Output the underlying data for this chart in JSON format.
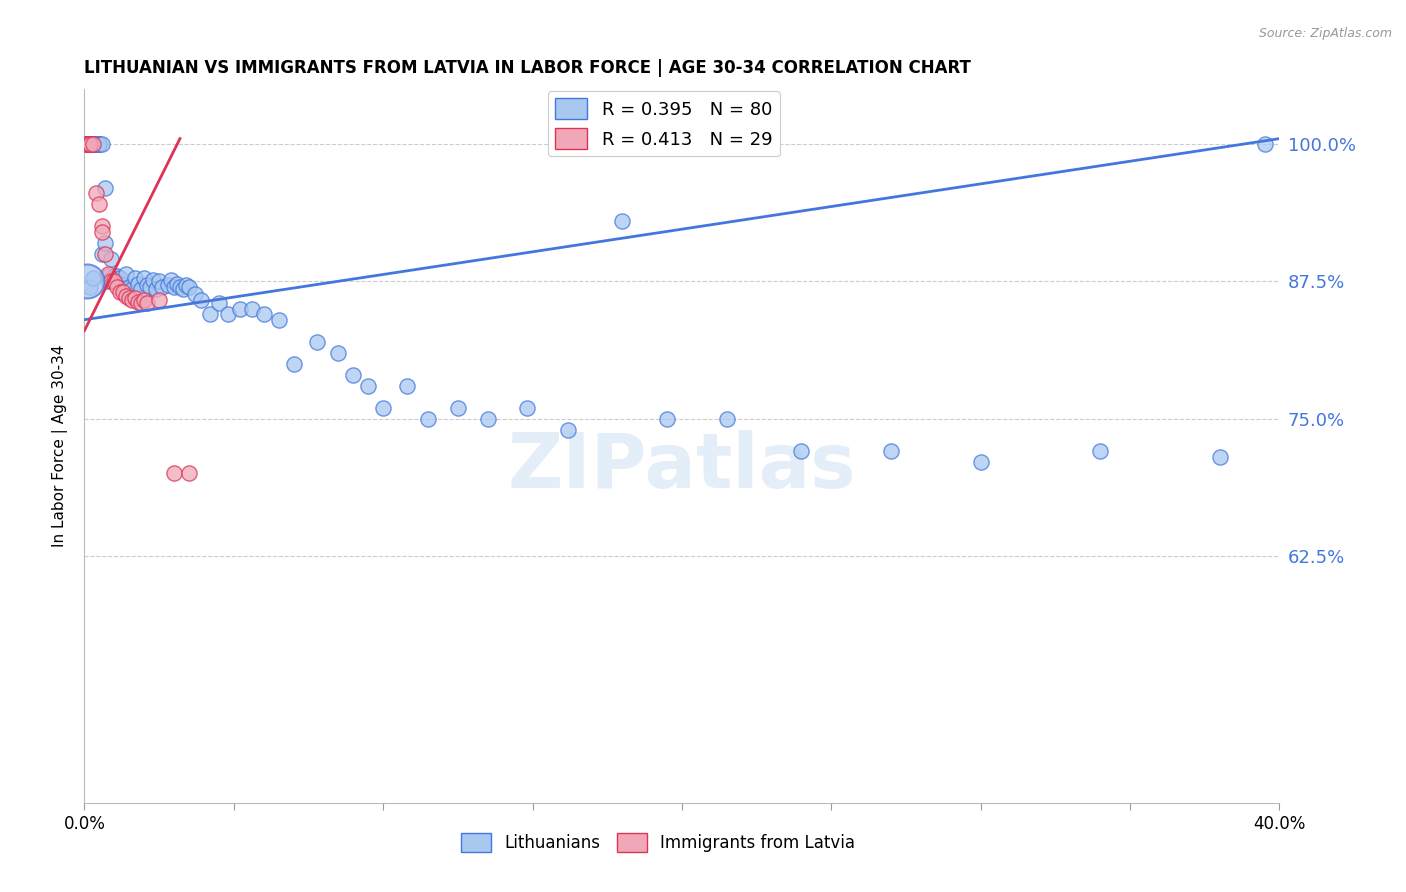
{
  "title": "LITHUANIAN VS IMMIGRANTS FROM LATVIA IN LABOR FORCE | AGE 30-34 CORRELATION CHART",
  "source": "Source: ZipAtlas.com",
  "ylabel": "In Labor Force | Age 30-34",
  "xlim": [
    0.0,
    0.4
  ],
  "ylim": [
    0.4,
    1.05
  ],
  "yticks": [
    0.625,
    0.75,
    0.875,
    1.0
  ],
  "ytick_labels": [
    "62.5%",
    "75.0%",
    "87.5%",
    "100.0%"
  ],
  "xticks": [
    0.0,
    0.05,
    0.1,
    0.15,
    0.2,
    0.25,
    0.3,
    0.35,
    0.4
  ],
  "xtick_labels": [
    "0.0%",
    "",
    "",
    "",
    "",
    "",
    "",
    "",
    "40.0%"
  ],
  "blue_color": "#a8c8f0",
  "pink_color": "#f0a8b8",
  "line_blue": "#4477dd",
  "line_pink": "#dd3355",
  "R_blue": 0.395,
  "N_blue": 80,
  "R_pink": 0.413,
  "N_pink": 29,
  "legend_label_blue": "Lithuanians",
  "legend_label_pink": "Immigrants from Latvia",
  "watermark": "ZIPatlas",
  "blue_line_x": [
    0.0,
    0.4
  ],
  "blue_line_y": [
    0.84,
    1.005
  ],
  "pink_line_x": [
    0.0,
    0.032
  ],
  "pink_line_y": [
    0.83,
    1.005
  ],
  "blue_x": [
    0.001,
    0.001,
    0.001,
    0.002,
    0.002,
    0.002,
    0.003,
    0.003,
    0.003,
    0.004,
    0.004,
    0.004,
    0.005,
    0.005,
    0.005,
    0.006,
    0.006,
    0.007,
    0.007,
    0.008,
    0.008,
    0.009,
    0.01,
    0.01,
    0.011,
    0.012,
    0.013,
    0.014,
    0.015,
    0.016,
    0.017,
    0.018,
    0.019,
    0.02,
    0.021,
    0.022,
    0.023,
    0.024,
    0.025,
    0.026,
    0.028,
    0.029,
    0.03,
    0.031,
    0.032,
    0.033,
    0.034,
    0.035,
    0.037,
    0.039,
    0.042,
    0.045,
    0.048,
    0.052,
    0.056,
    0.06,
    0.065,
    0.07,
    0.078,
    0.085,
    0.09,
    0.095,
    0.1,
    0.108,
    0.115,
    0.125,
    0.135,
    0.148,
    0.162,
    0.18,
    0.195,
    0.215,
    0.24,
    0.27,
    0.3,
    0.34,
    0.38,
    0.395,
    0.002,
    0.003
  ],
  "blue_y": [
    1.0,
    1.0,
    1.0,
    1.0,
    1.0,
    1.0,
    1.0,
    1.0,
    1.0,
    1.0,
    1.0,
    1.0,
    1.0,
    1.0,
    1.0,
    1.0,
    0.9,
    0.96,
    0.91,
    0.875,
    0.88,
    0.895,
    0.88,
    0.875,
    0.88,
    0.878,
    0.872,
    0.882,
    0.87,
    0.868,
    0.878,
    0.873,
    0.868,
    0.878,
    0.872,
    0.87,
    0.876,
    0.868,
    0.875,
    0.87,
    0.872,
    0.876,
    0.87,
    0.873,
    0.87,
    0.868,
    0.872,
    0.87,
    0.863,
    0.858,
    0.845,
    0.855,
    0.845,
    0.85,
    0.85,
    0.845,
    0.84,
    0.8,
    0.82,
    0.81,
    0.79,
    0.78,
    0.76,
    0.78,
    0.75,
    0.76,
    0.75,
    0.76,
    0.74,
    0.93,
    0.75,
    0.75,
    0.72,
    0.72,
    0.71,
    0.72,
    0.715,
    1.0,
    0.87,
    0.878
  ],
  "blue_large_x": [
    0.001
  ],
  "blue_large_y": [
    0.875
  ],
  "blue_large_s": [
    600
  ],
  "pink_x": [
    0.001,
    0.001,
    0.001,
    0.001,
    0.002,
    0.002,
    0.003,
    0.004,
    0.005,
    0.006,
    0.006,
    0.007,
    0.008,
    0.009,
    0.01,
    0.011,
    0.012,
    0.013,
    0.014,
    0.015,
    0.016,
    0.017,
    0.018,
    0.019,
    0.02,
    0.021,
    0.025,
    0.03,
    0.035
  ],
  "pink_y": [
    1.0,
    1.0,
    1.0,
    1.0,
    1.0,
    1.0,
    1.0,
    0.955,
    0.945,
    0.925,
    0.92,
    0.9,
    0.882,
    0.875,
    0.875,
    0.87,
    0.865,
    0.865,
    0.862,
    0.86,
    0.858,
    0.86,
    0.856,
    0.855,
    0.858,
    0.855,
    0.858,
    0.7,
    0.7
  ]
}
